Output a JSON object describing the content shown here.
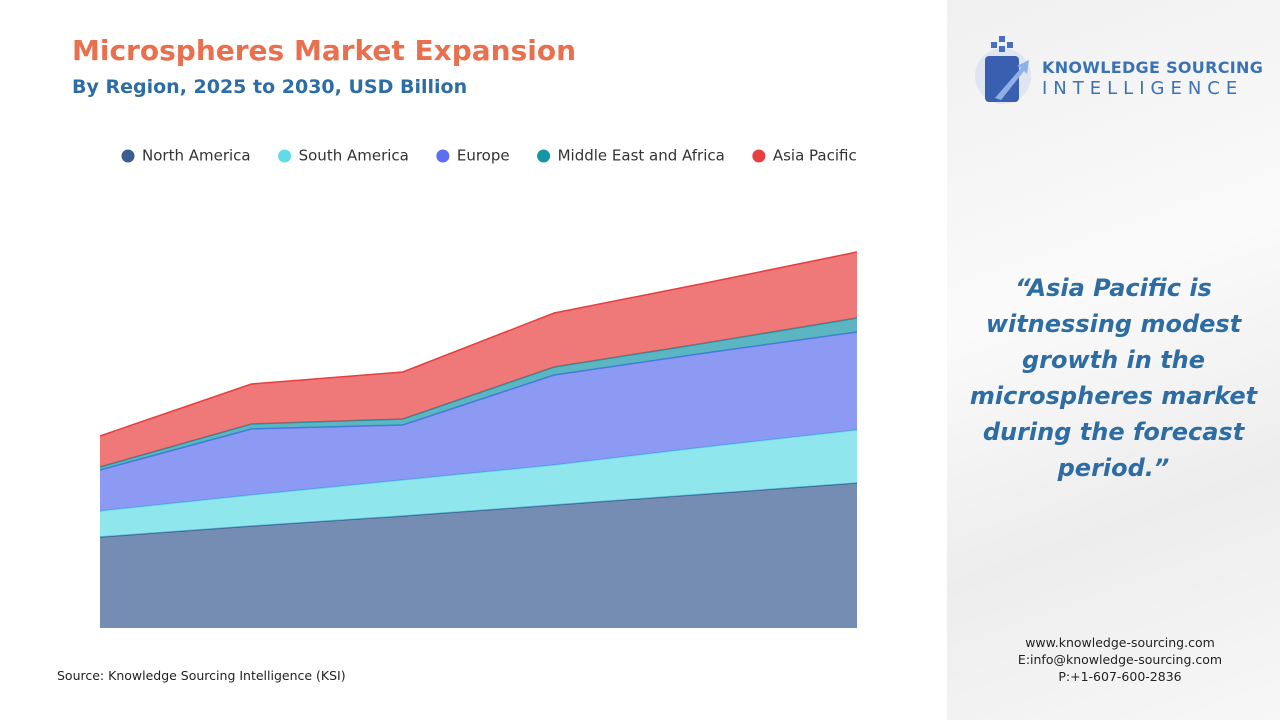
{
  "chart_data": {
    "type": "stacked-area",
    "title": "Microspheres Market Expansion",
    "subtitle": "By Region, 2025 to 2030, USD Billion",
    "categories": [
      null,
      null,
      null,
      null,
      null,
      null
    ],
    "ylim": [
      0,
      5
    ],
    "legend": "top",
    "series": [
      {
        "name": "North America",
        "color": "#3b5d91",
        "values": [
          0.91,
          1.02,
          1.12,
          1.23,
          1.34,
          1.45
        ]
      },
      {
        "name": "South America",
        "color": "#5fdce6",
        "values": [
          0.26,
          0.31,
          0.36,
          0.4,
          0.47,
          0.53
        ]
      },
      {
        "name": "Europe",
        "color": "#5b6ff0",
        "values": [
          0.41,
          0.66,
          0.55,
          0.9,
          0.94,
          0.98
        ]
      },
      {
        "name": "Middle East and Africa",
        "color": "#1596a8",
        "values": [
          0.03,
          0.05,
          0.06,
          0.08,
          0.1,
          0.14
        ]
      },
      {
        "name": "Asia Pacific",
        "color": "#e83e3e",
        "values": [
          0.31,
          0.4,
          0.47,
          0.54,
          0.6,
          0.66
        ]
      }
    ]
  },
  "source": "Source: Knowledge Sourcing Intelligence (KSI)",
  "logo": {
    "line1": "KNOWLEDGE SOURCING",
    "line2": "INTELLIGENCE"
  },
  "quote": "“Asia Pacific is witnessing modest growth in the microspheres market during the forecast period.”",
  "contact": {
    "web": "www.knowledge-sourcing.com",
    "email": "E:info@knowledge-sourcing.com",
    "phone": "P:+1-607-600-2836"
  }
}
